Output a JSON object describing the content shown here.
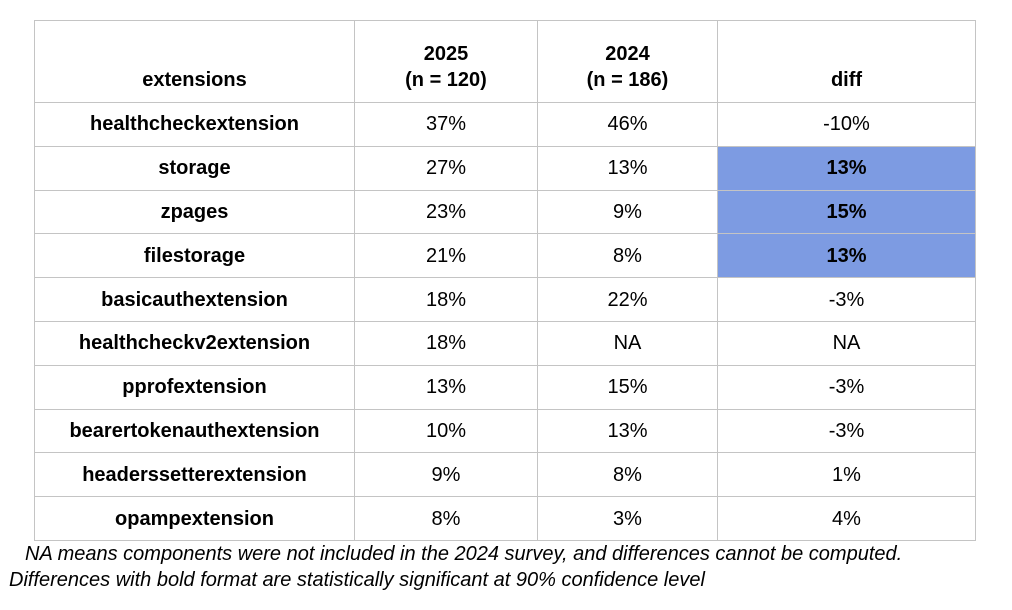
{
  "chart_data": {
    "type": "table",
    "columns": [
      {
        "key": "extension",
        "label": "extensions",
        "sublabel": ""
      },
      {
        "key": "y2025",
        "label": "2025",
        "sublabel": "(n = 120)"
      },
      {
        "key": "y2024",
        "label": "2024",
        "sublabel": "(n = 186)"
      },
      {
        "key": "diff",
        "label": "diff",
        "sublabel": ""
      }
    ],
    "rows": [
      {
        "extension": "healthcheckextension",
        "y2025": "37%",
        "y2024": "46%",
        "diff": "-10%",
        "diff_highlighted": false
      },
      {
        "extension": "storage",
        "y2025": "27%",
        "y2024": "13%",
        "diff": "13%",
        "diff_highlighted": true
      },
      {
        "extension": "zpages",
        "y2025": "23%",
        "y2024": "9%",
        "diff": "15%",
        "diff_highlighted": true
      },
      {
        "extension": "filestorage",
        "y2025": "21%",
        "y2024": "8%",
        "diff": "13%",
        "diff_highlighted": true
      },
      {
        "extension": "basicauthextension",
        "y2025": "18%",
        "y2024": "22%",
        "diff": "-3%",
        "diff_highlighted": false
      },
      {
        "extension": "healthcheckv2extension",
        "y2025": "18%",
        "y2024": "NA",
        "diff": "NA",
        "diff_highlighted": false
      },
      {
        "extension": "pprofextension",
        "y2025": "13%",
        "y2024": "15%",
        "diff": "-3%",
        "diff_highlighted": false
      },
      {
        "extension": "bearertokenauthextension",
        "y2025": "10%",
        "y2024": "13%",
        "diff": "-3%",
        "diff_highlighted": false
      },
      {
        "extension": "headerssetterextension",
        "y2025": "9%",
        "y2024": "8%",
        "diff": "1%",
        "diff_highlighted": false
      },
      {
        "extension": "opampextension",
        "y2025": "8%",
        "y2024": "3%",
        "diff": "4%",
        "diff_highlighted": false
      }
    ],
    "notes": [
      "NA means components were not included in the 2024 survey, and differences cannot be computed.",
      "Differences with bold format are statistically significant at 90% confidence level"
    ]
  },
  "colors": {
    "highlight_cell_background": "#7d9be2",
    "table_border": "#c4c4c4",
    "text": "#000000",
    "background": "#ffffff"
  }
}
